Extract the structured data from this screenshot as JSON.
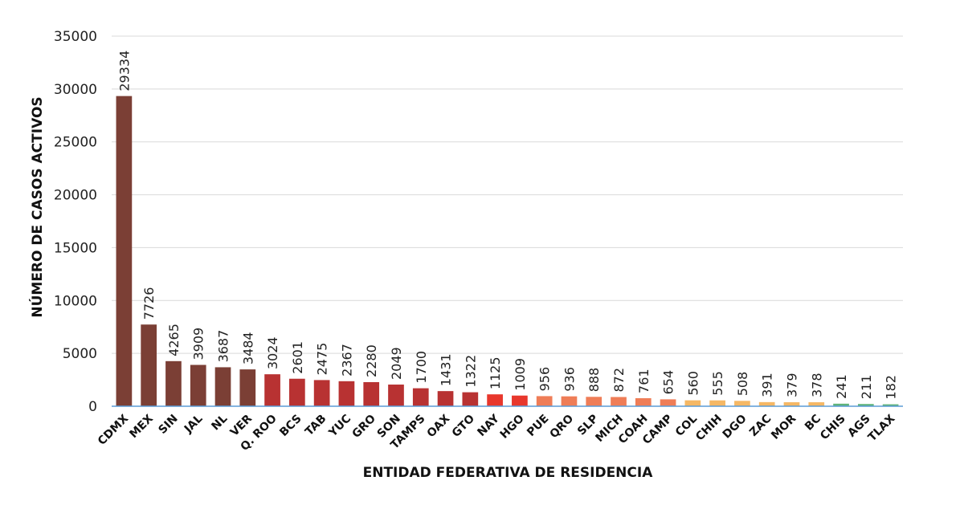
{
  "chart_data": {
    "type": "bar",
    "title": "",
    "xlabel": "ENTIDAD FEDERATIVA DE RESIDENCIA",
    "ylabel": "NÚMERO DE CASOS ACTIVOS",
    "ylim": [
      0,
      35000
    ],
    "yticks": [
      0,
      5000,
      10000,
      15000,
      20000,
      25000,
      30000,
      35000
    ],
    "grid": true,
    "categories": [
      "CDMX",
      "MEX",
      "SIN",
      "JAL",
      "NL",
      "VER",
      "Q. ROO",
      "BCS",
      "TAB",
      "YUC",
      "GRO",
      "SON",
      "TAMPS",
      "OAX",
      "GTO",
      "NAY",
      "HGO",
      "PUE",
      "QRO",
      "SLP",
      "MICH",
      "COAH",
      "CAMP",
      "COL",
      "CHIH",
      "DGO",
      "ZAC",
      "MOR",
      "BC",
      "CHIS",
      "AGS",
      "TLAX"
    ],
    "values": [
      29334,
      7726,
      4265,
      3909,
      3687,
      3484,
      3024,
      2601,
      2475,
      2367,
      2280,
      2049,
      1700,
      1431,
      1322,
      1125,
      1009,
      956,
      936,
      888,
      872,
      761,
      654,
      560,
      555,
      508,
      391,
      379,
      378,
      241,
      211,
      182
    ],
    "colors": [
      "#7b3f35",
      "#7b3f35",
      "#7b3f35",
      "#7b3f35",
      "#7b3f35",
      "#7b3f35",
      "#b83232",
      "#b83232",
      "#b83232",
      "#b83232",
      "#b83232",
      "#b83232",
      "#b83232",
      "#b83232",
      "#b83232",
      "#e8372c",
      "#e8372c",
      "#ef7d57",
      "#ef7d57",
      "#ef7d57",
      "#ef7d57",
      "#ef7d57",
      "#ef7d57",
      "#f5b865",
      "#f5b865",
      "#f5b865",
      "#f5b865",
      "#f5b865",
      "#f5b865",
      "#5fb37a",
      "#5fb37a",
      "#5fb37a"
    ]
  }
}
